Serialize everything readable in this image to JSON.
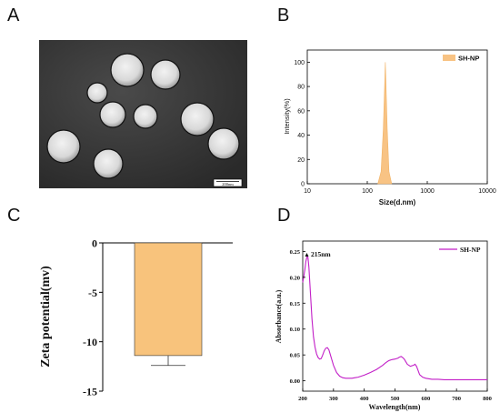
{
  "panels": {
    "a": "A",
    "b": "B",
    "c": "C",
    "d": "D"
  },
  "chart_data": [
    {
      "panel": "A",
      "type": "other",
      "scale_bar_label": "200nm"
    },
    {
      "panel": "B",
      "type": "area",
      "xlabel": "Size(d.nm)",
      "ylabel": "Intensity(%)",
      "xscale": "log",
      "xlim": [
        10,
        10000
      ],
      "ylim": [
        0,
        110
      ],
      "xticks": [
        "10",
        "100",
        "1000",
        "10000"
      ],
      "yticks": [
        "0",
        "20",
        "40",
        "60",
        "80",
        "100"
      ],
      "legend_placement": "top-right",
      "color": "#f8c384",
      "series": [
        {
          "name": "SH-NP",
          "x": [
            150,
            170,
            185,
            195,
            200,
            205,
            215,
            230,
            255
          ],
          "y": [
            0,
            10,
            45,
            82,
            100,
            82,
            45,
            10,
            0
          ]
        }
      ]
    },
    {
      "panel": "C",
      "type": "bar",
      "categories": [
        ""
      ],
      "values": [
        -11.4
      ],
      "error": [
        1.0
      ],
      "ylabel": "Zeta potential(mv)",
      "ylim": [
        -15,
        0
      ],
      "yticks": [
        "0",
        "-5",
        "-10",
        "-15"
      ],
      "color": "#f8c37c"
    },
    {
      "panel": "D",
      "type": "line",
      "xlabel": "Wavelength(nm)",
      "ylabel": "Absorbance(a.u.)",
      "xlim": [
        200,
        800
      ],
      "ylim": [
        -0.02,
        0.27
      ],
      "xticks": [
        "200",
        "300",
        "400",
        "500",
        "600",
        "700",
        "800"
      ],
      "yticks": [
        "0.00",
        "0.05",
        "0.10",
        "0.15",
        "0.20",
        "0.25"
      ],
      "annotation": "215nm",
      "legend_placement": "top-right",
      "color": "#c21fc7",
      "series": [
        {
          "name": "SH-NP",
          "x": [
            200,
            203,
            207,
            210,
            213,
            215,
            217,
            220,
            225,
            230,
            235,
            240,
            245,
            250,
            255,
            260,
            265,
            270,
            275,
            280,
            285,
            290,
            295,
            300,
            310,
            320,
            330,
            340,
            350,
            360,
            370,
            380,
            390,
            400,
            420,
            440,
            460,
            470,
            480,
            490,
            500,
            510,
            515,
            520,
            525,
            530,
            535,
            540,
            550,
            560,
            565,
            570,
            575,
            580,
            590,
            600,
            620,
            640,
            660,
            680,
            700,
            720,
            740,
            760,
            780,
            800
          ],
          "y": [
            0.19,
            0.2,
            0.215,
            0.23,
            0.238,
            0.24,
            0.238,
            0.22,
            0.17,
            0.12,
            0.085,
            0.065,
            0.052,
            0.045,
            0.042,
            0.043,
            0.05,
            0.058,
            0.063,
            0.064,
            0.06,
            0.05,
            0.04,
            0.03,
            0.016,
            0.009,
            0.006,
            0.005,
            0.005,
            0.005,
            0.006,
            0.007,
            0.009,
            0.011,
            0.016,
            0.022,
            0.03,
            0.035,
            0.039,
            0.041,
            0.042,
            0.044,
            0.046,
            0.047,
            0.045,
            0.042,
            0.037,
            0.032,
            0.028,
            0.03,
            0.032,
            0.028,
            0.02,
            0.012,
            0.007,
            0.005,
            0.003,
            0.003,
            0.002,
            0.002,
            0.002,
            0.002,
            0.002,
            0.002,
            0.002,
            0.002
          ]
        }
      ]
    }
  ]
}
